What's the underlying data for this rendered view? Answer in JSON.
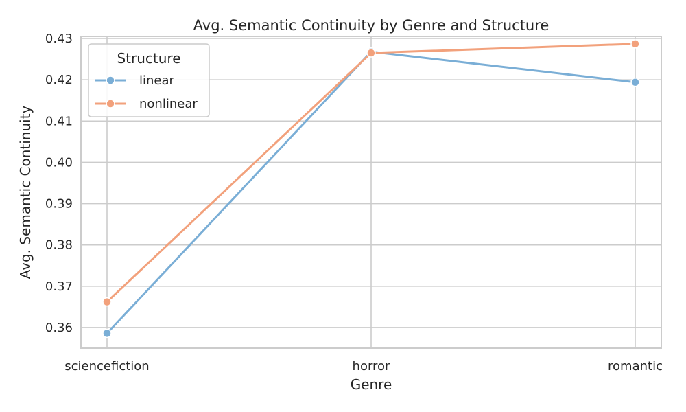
{
  "chart_data": {
    "type": "line",
    "title": "Avg. Semantic Continuity by Genre and Structure",
    "xlabel": "Genre",
    "ylabel": "Avg. Semantic Continuity",
    "categories": [
      "sciencefiction",
      "horror",
      "romantic"
    ],
    "ylim": [
      0.355,
      0.4305
    ],
    "yticks": [
      0.36,
      0.37,
      0.38,
      0.39,
      0.4,
      0.41,
      0.42,
      0.43
    ],
    "ytick_labels": [
      "0.36",
      "0.37",
      "0.38",
      "0.39",
      "0.40",
      "0.41",
      "0.42",
      "0.43"
    ],
    "grid": true,
    "legend": {
      "title": "Structure",
      "placement": "top-left"
    },
    "series": [
      {
        "name": "linear",
        "color": "#7aaed6",
        "values": [
          0.3586,
          0.4268,
          0.4194
        ]
      },
      {
        "name": "nonlinear",
        "color": "#f2a17c",
        "values": [
          0.3662,
          0.4265,
          0.4287
        ]
      }
    ]
  }
}
